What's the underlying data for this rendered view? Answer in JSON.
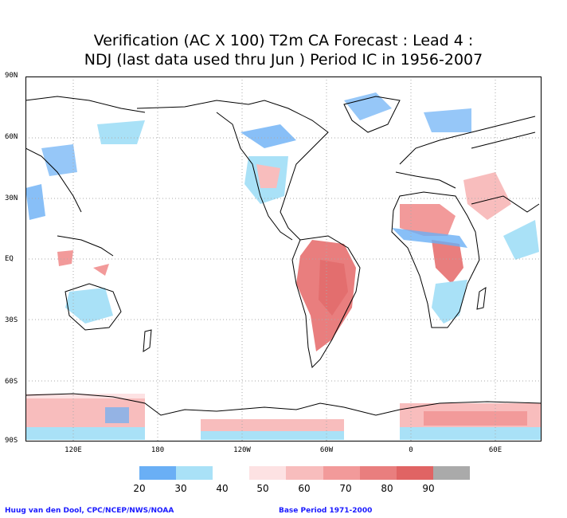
{
  "title": {
    "line1": "Verification (AC X 100) T2m CA Forecast : Lead 4 :",
    "line2": "NDJ (last data used thru Jun ) Period IC in 1956-2007"
  },
  "y_axis_labels": [
    "90N",
    "60N",
    "30N",
    "EQ",
    "30S",
    "60S",
    "90S"
  ],
  "x_axis_labels": [
    "120E",
    "180",
    "120W",
    "60W",
    "0",
    "60E"
  ],
  "colorbar": {
    "colors": [
      "#6aaff5",
      "#a9e1f7",
      "#ffffff",
      "#fde2e3",
      "#f8bdbd",
      "#f29a9a",
      "#e97e7e",
      "#e06464",
      "#aaaaaa"
    ],
    "labels": [
      "20",
      "30",
      "40",
      "50",
      "60",
      "70",
      "80",
      "90"
    ]
  },
  "colors": {
    "blue": "#6aaff5",
    "light_blue": "#a9e1f7",
    "pink": "#f8bdbd",
    "red": "#e97e7e",
    "grid": "#aaaaaa"
  },
  "credits": {
    "left": "Huug van den Dool, CPC/NCEP/NWS/NOAA",
    "right": "Base Period 1971-2000"
  }
}
